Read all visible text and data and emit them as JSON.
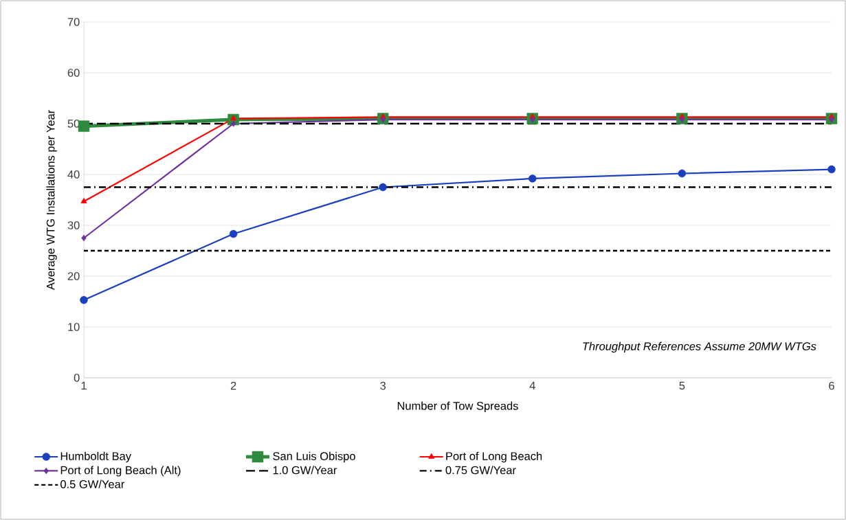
{
  "chart_data": {
    "type": "line",
    "xlabel": "Number of Tow Spreads",
    "ylabel": "Average WTG Installations per Year",
    "x": [
      1,
      2,
      3,
      4,
      5,
      6
    ],
    "series": [
      {
        "name": "Humboldt Bay",
        "color": "#1a3fbf",
        "marker": "circle",
        "values": [
          15.3,
          28.3,
          37.5,
          39.2,
          40.2,
          41
        ]
      },
      {
        "name": "San Luis Obispo",
        "color": "#2e8b3e",
        "marker": "square",
        "values": [
          49.5,
          50.8,
          51,
          51,
          51,
          51
        ]
      },
      {
        "name": "Port of Long Beach",
        "color": "#ff0000",
        "marker": "triangle",
        "values": [
          34.7,
          51,
          51.3,
          51.3,
          51.3,
          51.3
        ]
      },
      {
        "name": "Port of Long Beach (Alt)",
        "color": "#7030a0",
        "marker": "diamond",
        "values": [
          27.5,
          50,
          50.8,
          50.8,
          50.8,
          50.8
        ]
      }
    ],
    "ref_lines": [
      {
        "axis": "y",
        "value": 50,
        "label": "1.0 GW/Year",
        "color": "#000000",
        "line_style": "long dashed"
      },
      {
        "axis": "y",
        "value": 37.5,
        "label": "0.75 GW/Year",
        "color": "#000000",
        "line_style": "dash dot"
      },
      {
        "axis": "y",
        "value": 25,
        "label": "0.5 GW/Year",
        "color": "#000000",
        "line_style": "dashed"
      }
    ],
    "annotations": [
      "Throughput References Assume 20MW WTGs"
    ],
    "xlim": [
      1,
      6
    ],
    "xticks": [
      1,
      2,
      3,
      4,
      5,
      6
    ],
    "ylim": [
      0,
      70
    ],
    "yticks": [
      0,
      10,
      20,
      30,
      40,
      50,
      60,
      70
    ],
    "grid": "y",
    "legend": "bottom",
    "line_style": "solid"
  }
}
